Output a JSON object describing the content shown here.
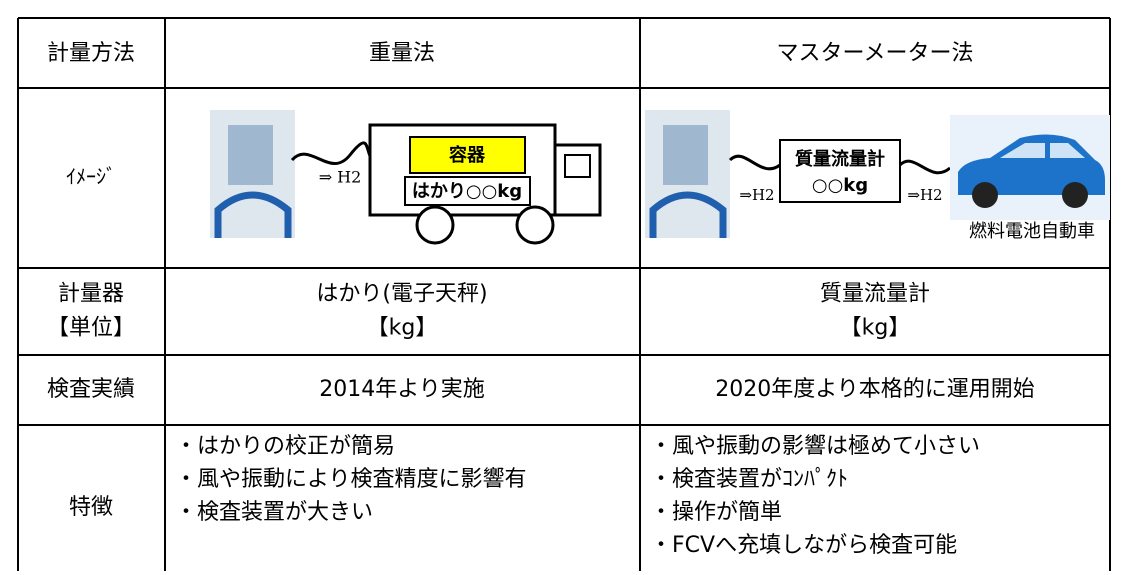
{
  "table": {
    "header": [
      "計量方法",
      "重量法",
      "マスターメーター法"
    ],
    "image_row": {
      "label": "ｲﾒｰｼﾞ",
      "left": {
        "arrow": "⇒ H2",
        "container": "容器",
        "scale": "はかり○○kg"
      },
      "right": {
        "arrow_in": "⇒H2",
        "meter": "質量流量計",
        "meter_value": "○○kg",
        "arrow_out": "⇒H2",
        "car": "燃料電池自動車"
      }
    },
    "rows": [
      {
        "label": [
          "計量器",
          "【単位】"
        ],
        "cells": [
          [
            "はかり(電子天秤)",
            "【kg】"
          ],
          [
            "質量流量計",
            "【kg】"
          ]
        ]
      },
      {
        "label": [
          "検査実績"
        ],
        "cells": [
          [
            "2014年より実施"
          ],
          [
            "2020年度より本格的に運用開始"
          ]
        ]
      },
      {
        "label": [
          "特徴"
        ],
        "cells": [
          [
            "・はかりの校正が簡易",
            "・風や振動により検査精度に影響有",
            "・検査装置が大きい"
          ],
          [
            "・風や振動の影響は極めて小さい",
            "・検査装置がｺﾝﾊﾟｸﾄ",
            "・操作が簡単",
            "・FCVへ充填しながら検査可能"
          ]
        ]
      }
    ]
  }
}
